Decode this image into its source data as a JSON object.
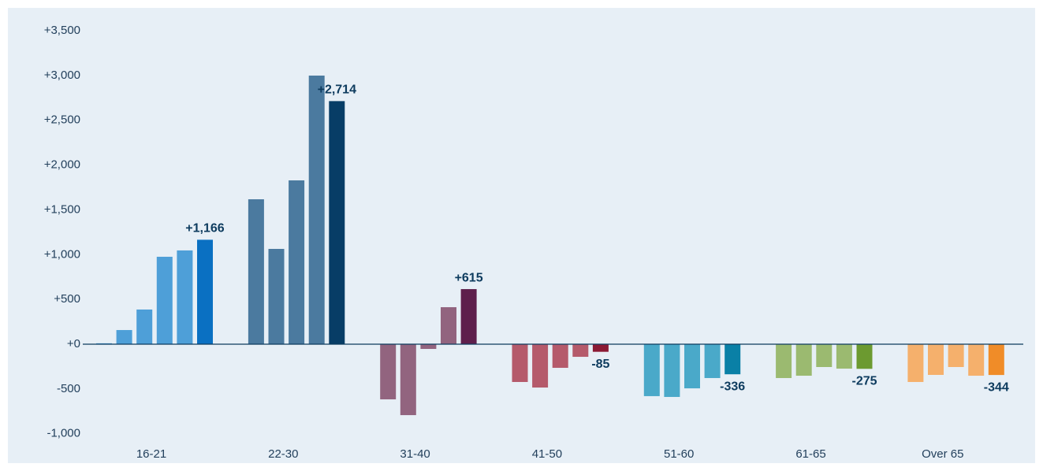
{
  "chart_data": {
    "type": "bar",
    "categories": [
      "16-21",
      "22-30",
      "31-40",
      "41-50",
      "51-60",
      "61-65",
      "Over 65"
    ],
    "values": [
      [
        10,
        158,
        387,
        976,
        1047,
        1166
      ],
      [
        null,
        1618,
        1064,
        1829,
        2999,
        2714
      ],
      [
        null,
        -616,
        -792,
        -53,
        413,
        615
      ],
      [
        null,
        -422,
        -484,
        -264,
        -141,
        -85
      ],
      [
        null,
        -580,
        -589,
        -493,
        -378,
        -336
      ],
      [
        null,
        -378,
        -352,
        -255,
        -273,
        -275
      ],
      [
        null,
        -422,
        -343,
        -255,
        -352,
        -344
      ]
    ],
    "value_labels": [
      "+1,166",
      "+2,714",
      "+615",
      "-85",
      "-336",
      "-275",
      "-344"
    ],
    "colors": [
      "#4e9fd8",
      "#4b7a9f",
      "#92647f",
      "#b55a6b",
      "#4aa9c9",
      "#9bba70",
      "#f5b06c"
    ],
    "highlight_colors": [
      "#0a70c2",
      "#073d66",
      "#5e1f4c",
      "#8b1a34",
      "#0a80a6",
      "#6c9a30",
      "#f08c28"
    ],
    "ylim": [
      -1100,
      3600
    ],
    "yticks": [
      {
        "value": 3500,
        "label": "+3,500"
      },
      {
        "value": 3000,
        "label": "+3,000"
      },
      {
        "value": 2500,
        "label": "+2,500"
      },
      {
        "value": 2000,
        "label": "+2,000"
      },
      {
        "value": 1500,
        "label": "+1,500"
      },
      {
        "value": 1000,
        "label": "+1,000"
      },
      {
        "value": 500,
        "label": "+500"
      },
      {
        "value": 0,
        "label": "+0"
      },
      {
        "value": -500,
        "label": "-500"
      },
      {
        "value": -1000,
        "label": "-1,000"
      }
    ]
  }
}
